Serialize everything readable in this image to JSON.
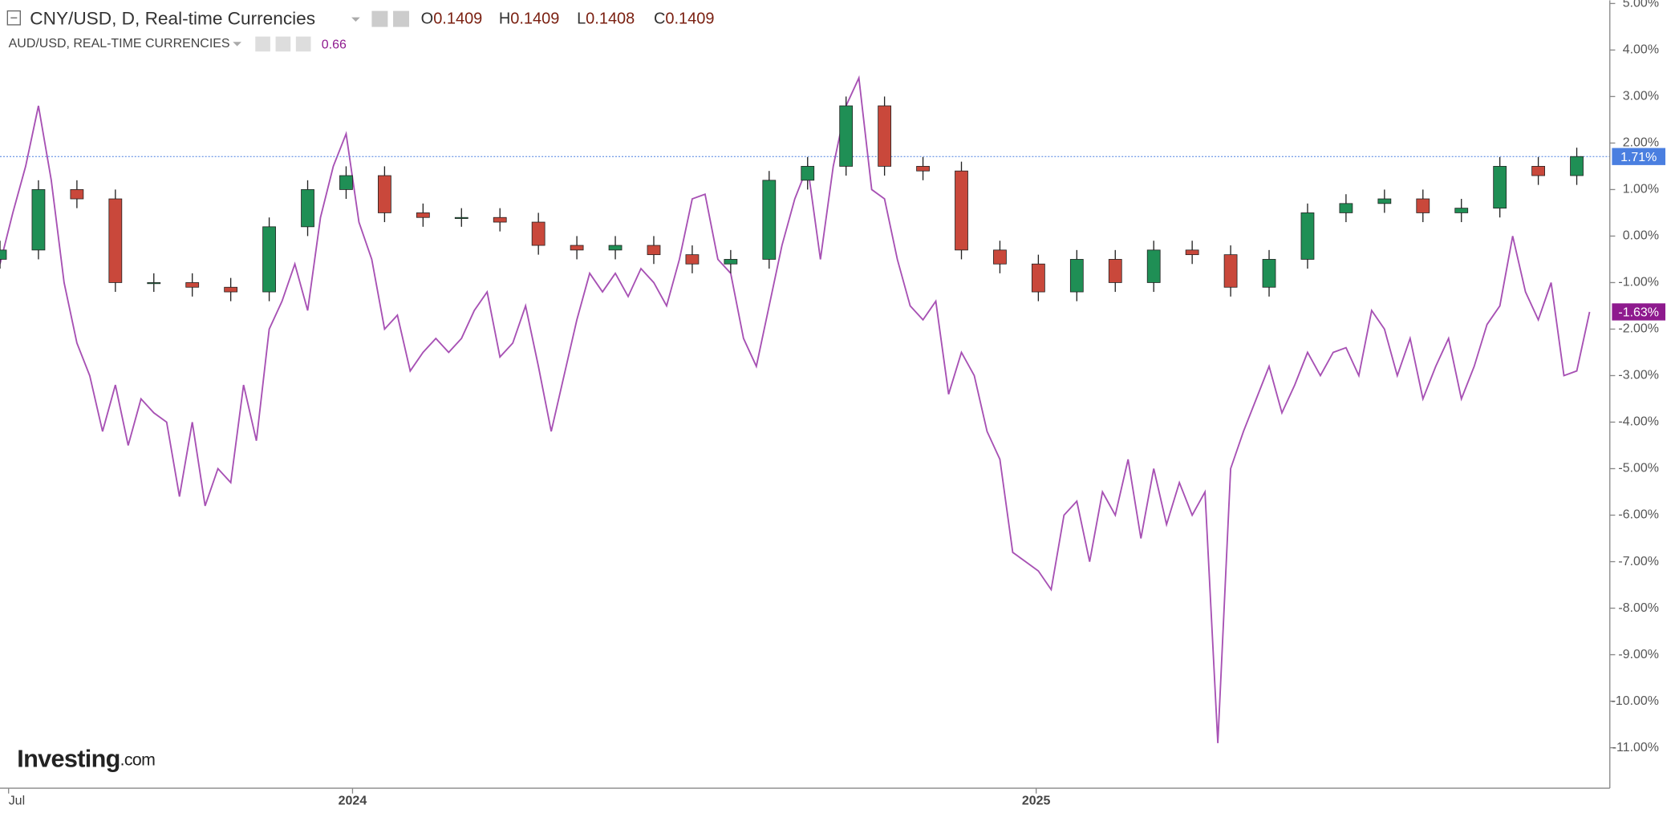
{
  "chart_data": {
    "type": "candlestick",
    "ohlc_labels": [
      "O",
      "H",
      "L",
      "C"
    ],
    "ohlc_values": [
      0.1409,
      0.1409,
      0.1408,
      0.1409
    ],
    "current_value": 0.66,
    "brand": "Investing",
    "brand_suffix": ".com",
    "xlim": [
      0,
      125.58
    ],
    "xticks": [
      {
        "value": 0.67,
        "label": "Jul"
      },
      {
        "value": 27.5,
        "label": "2024"
      },
      {
        "value": 80.83,
        "label": "2025"
      }
    ],
    "ylim": [
      -11.87,
      5.07
    ],
    "yticks": [
      {
        "value": 5,
        "label": "5.00%"
      },
      {
        "value": 4,
        "label": "4.00%"
      },
      {
        "value": 3,
        "label": "3.00%"
      },
      {
        "value": 2,
        "label": "2.00%"
      },
      {
        "value": 1,
        "label": "1.00%"
      },
      {
        "value": 0,
        "label": "0.00%"
      },
      {
        "value": -1,
        "label": "-1.00%"
      },
      {
        "value": -2,
        "label": "-2.00%"
      },
      {
        "value": -3,
        "label": "-3.00%"
      },
      {
        "value": -4,
        "label": "-4.00%"
      },
      {
        "value": -5,
        "label": "-5.00%"
      },
      {
        "value": -6,
        "label": "-6.00%"
      },
      {
        "value": -7,
        "label": "-7.00%"
      },
      {
        "value": -8,
        "label": "-8.00%"
      },
      {
        "value": -9,
        "label": "-9.00%"
      },
      {
        "value": -10,
        "label": "-10.00%"
      },
      {
        "value": -11,
        "label": "-11.00%"
      }
    ],
    "series": [
      {
        "name": "CNY/USD, D, Real-time Currencies",
        "type": "candlestick",
        "up_color": "#1f8f55",
        "down_color": "#c9483b",
        "badge_color": "#4a7fe0",
        "x": [
          0,
          3,
          6,
          9,
          12,
          15,
          18,
          21,
          24,
          27,
          30,
          33,
          36,
          39,
          42,
          45,
          48,
          51,
          54,
          57,
          60,
          63,
          66,
          69,
          72,
          75,
          78,
          81,
          84,
          87,
          90,
          93,
          96,
          99,
          102,
          105,
          108,
          111,
          114,
          117,
          120,
          123
        ],
        "open": [
          -0.5,
          -0.3,
          1.0,
          0.8,
          -1.0,
          -1.0,
          -1.1,
          -1.2,
          0.2,
          1.0,
          1.3,
          0.5,
          0.4,
          0.4,
          0.3,
          -0.2,
          -0.3,
          -0.2,
          -0.4,
          -0.6,
          -0.5,
          1.2,
          1.5,
          2.8,
          1.5,
          1.4,
          -0.3,
          -0.6,
          -1.2,
          -0.5,
          -1.0,
          -0.3,
          -0.4,
          -1.1,
          -0.5,
          0.5,
          0.7,
          0.8,
          0.5,
          0.6,
          1.5,
          1.3
        ],
        "high": [
          -0.1,
          1.2,
          1.2,
          1.0,
          -0.8,
          -0.8,
          -0.9,
          0.4,
          1.2,
          1.5,
          1.5,
          0.7,
          0.6,
          0.6,
          0.5,
          0.0,
          0.0,
          0.0,
          -0.2,
          -0.3,
          1.4,
          1.7,
          3.0,
          3.0,
          1.7,
          1.6,
          -0.1,
          -0.4,
          -0.3,
          -0.3,
          -0.1,
          -0.1,
          -0.2,
          -0.3,
          0.7,
          0.9,
          1.0,
          1.0,
          0.8,
          1.7,
          1.7,
          1.9
        ],
        "low": [
          -0.7,
          -0.5,
          0.6,
          -1.2,
          -1.2,
          -1.3,
          -1.4,
          -1.4,
          0.0,
          0.8,
          0.3,
          0.2,
          0.2,
          0.1,
          -0.4,
          -0.5,
          -0.5,
          -0.6,
          -0.8,
          -0.8,
          -0.7,
          1.0,
          1.3,
          1.3,
          1.2,
          -0.5,
          -0.8,
          -1.4,
          -1.4,
          -1.2,
          -1.2,
          -0.6,
          -1.3,
          -1.3,
          -0.7,
          0.3,
          0.5,
          0.3,
          0.3,
          0.4,
          1.1,
          1.1
        ],
        "close": [
          -0.3,
          1.0,
          0.8,
          -1.0,
          -1.0,
          -1.1,
          -1.2,
          0.2,
          1.0,
          1.3,
          0.5,
          0.4,
          0.4,
          0.3,
          -0.2,
          -0.3,
          -0.2,
          -0.4,
          -0.6,
          -0.5,
          1.2,
          1.5,
          2.8,
          1.5,
          1.4,
          -0.3,
          -0.6,
          -1.2,
          -0.5,
          -1.0,
          -0.3,
          -0.4,
          -1.1,
          -0.5,
          0.5,
          0.7,
          0.8,
          0.5,
          0.6,
          1.5,
          1.3,
          1.71
        ],
        "last_label": {
          "value": 1.71,
          "label": "1.71%"
        }
      },
      {
        "name": "AUD/USD, REAL-TIME CURRENCIES",
        "type": "line",
        "color": "#a751b4",
        "badge_color": "#8e1a8e",
        "values": [
          -0.6,
          0.5,
          1.5,
          2.8,
          1.2,
          -1.0,
          -2.3,
          -3.0,
          -4.2,
          -3.2,
          -4.5,
          -3.5,
          -3.8,
          -4.0,
          -5.6,
          -4.0,
          -5.8,
          -5.0,
          -5.3,
          -3.2,
          -4.4,
          -2.0,
          -1.4,
          -0.6,
          -1.6,
          0.4,
          1.5,
          2.2,
          0.3,
          -0.5,
          -2.0,
          -1.7,
          -2.9,
          -2.5,
          -2.2,
          -2.5,
          -2.2,
          -1.6,
          -1.2,
          -2.6,
          -2.3,
          -1.5,
          -2.8,
          -4.2,
          -3.0,
          -1.8,
          -0.8,
          -1.2,
          -0.8,
          -1.3,
          -0.7,
          -1.0,
          -1.5,
          -0.5,
          0.8,
          0.9,
          -0.5,
          -0.8,
          -2.2,
          -2.8,
          -1.5,
          -0.2,
          0.8,
          1.5,
          -0.5,
          1.5,
          2.8,
          3.4,
          1.0,
          0.8,
          -0.5,
          -1.5,
          -1.8,
          -1.4,
          -3.4,
          -2.5,
          -3.0,
          -4.2,
          -4.8,
          -6.8,
          -7.0,
          -7.2,
          -7.6,
          -6.0,
          -5.7,
          -7.0,
          -5.5,
          -6.0,
          -4.8,
          -6.5,
          -5.0,
          -6.2,
          -5.3,
          -6.0,
          -5.5,
          -10.9,
          -5.0,
          -4.2,
          -3.5,
          -2.8,
          -3.8,
          -3.2,
          -2.5,
          -3.0,
          -2.5,
          -2.4,
          -3.0,
          -1.6,
          -2.0,
          -3.0,
          -2.2,
          -3.5,
          -2.8,
          -2.2,
          -3.5,
          -2.8,
          -1.9,
          -1.5,
          0.0,
          -1.2,
          -1.8,
          -1.0,
          -3.0,
          -2.9,
          -1.63
        ],
        "last_label": {
          "value": -1.63,
          "label": "-1.63%"
        }
      }
    ]
  }
}
